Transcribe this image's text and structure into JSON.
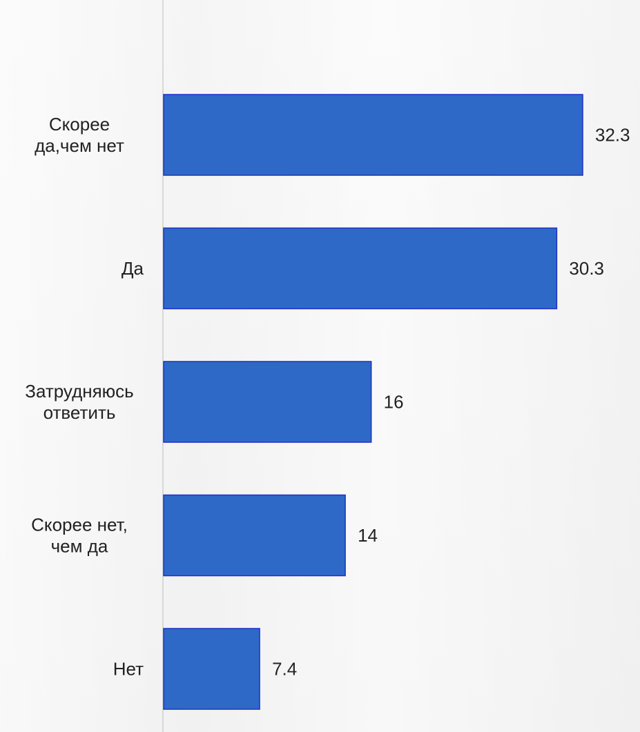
{
  "chart_data": {
    "type": "bar",
    "orientation": "horizontal",
    "title": "",
    "xlabel": "",
    "ylabel": "",
    "categories": [
      [
        "Скорее",
        "да,чем нет"
      ],
      [
        "Да"
      ],
      [
        "Затрудняюсь",
        "ответить"
      ],
      [
        "Скорее нет,",
        "чем да"
      ],
      [
        "Нет"
      ]
    ],
    "values": [
      32.3,
      30.3,
      16,
      14,
      7.4
    ],
    "value_labels": [
      "32.3",
      "30.3",
      "16",
      "14",
      "7.4"
    ],
    "xlim": [
      0,
      32.3
    ],
    "grid": false,
    "legend": "none",
    "colors": {
      "bar_fill": "#2e69c7",
      "bar_stroke": "#1f2fc8",
      "axis_line": "#c8c8c8",
      "text": "#222222"
    }
  }
}
